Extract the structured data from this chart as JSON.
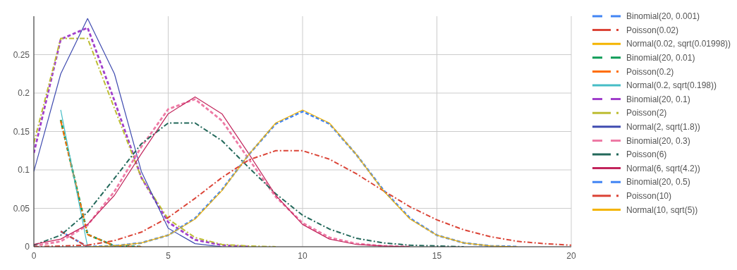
{
  "chart_data": {
    "type": "line",
    "x": [
      0,
      1,
      2,
      3,
      4,
      5,
      6,
      7,
      8,
      9,
      10,
      11,
      12,
      13,
      14,
      15,
      16,
      17,
      18,
      19,
      20
    ],
    "xlim": [
      0,
      20
    ],
    "xticks": [
      0,
      5,
      10,
      15,
      20
    ],
    "ylim": [
      0,
      0.3
    ],
    "yticks": [
      0,
      0.05,
      0.1,
      0.15,
      0.2,
      0.25
    ],
    "grid": true,
    "legend": "right",
    "series": [
      {
        "name": "Binomial(20, 0.001)",
        "color": "#4285f4",
        "line_style": "dashed",
        "values": [
          null,
          0.02,
          0,
          null,
          null,
          null,
          null,
          null,
          null,
          null,
          null,
          null,
          null,
          null,
          null,
          null,
          null,
          null,
          null,
          null,
          null
        ]
      },
      {
        "name": "Poisson(0.02)",
        "color": "#db4437",
        "line_style": "dashdot",
        "values": [
          null,
          0.02,
          0,
          null,
          null,
          null,
          null,
          null,
          null,
          null,
          null,
          null,
          null,
          null,
          null,
          null,
          null,
          null,
          null,
          null,
          null
        ]
      },
      {
        "name": "Normal(0.02, sqrt(0.01998))",
        "color": "#f4b400",
        "line_style": "solid",
        "values": [
          null,
          null,
          null,
          null,
          null,
          null,
          null,
          null,
          null,
          null,
          null,
          null,
          null,
          null,
          null,
          null,
          null,
          null,
          null,
          null,
          null
        ]
      },
      {
        "name": "Binomial(20, 0.01)",
        "color": "#0f9d58",
        "line_style": "dashed",
        "values": [
          null,
          0.165,
          0.016,
          0.001,
          0,
          null,
          null,
          null,
          null,
          null,
          null,
          null,
          null,
          null,
          null,
          null,
          null,
          null,
          null,
          null,
          null
        ]
      },
      {
        "name": "Poisson(0.2)",
        "color": "#ff6d00",
        "line_style": "dashdot",
        "values": [
          null,
          0.164,
          0.016,
          0.001,
          0,
          null,
          null,
          null,
          null,
          null,
          null,
          null,
          null,
          null,
          null,
          null,
          null,
          null,
          null,
          null,
          null
        ]
      },
      {
        "name": "Normal(0.2, sqrt(0.198))",
        "color": "#46bdc6",
        "line_style": "solid",
        "values": [
          null,
          0.178,
          0,
          null,
          null,
          null,
          null,
          null,
          null,
          null,
          null,
          null,
          null,
          null,
          null,
          null,
          null,
          null,
          null,
          null,
          null
        ]
      },
      {
        "name": "Binomial(20, 0.1)",
        "color": "#a03fcb",
        "line_style": "dashed",
        "values": [
          0.122,
          0.27,
          0.285,
          0.19,
          0.09,
          0.032,
          0.009,
          0.002,
          0,
          null,
          null,
          null,
          null,
          null,
          null,
          null,
          null,
          null,
          null,
          null,
          null
        ]
      },
      {
        "name": "Poisson(2)",
        "color": "#bdbd33",
        "line_style": "dashdot",
        "values": [
          0.135,
          0.271,
          0.271,
          0.18,
          0.09,
          0.036,
          0.012,
          0.003,
          0.001,
          0,
          null,
          null,
          null,
          null,
          null,
          null,
          null,
          null,
          null,
          null,
          null
        ]
      },
      {
        "name": "Normal(2, sqrt(1.8))",
        "color": "#3f4bb0",
        "line_style": "solid",
        "values": [
          0.098,
          0.225,
          0.297,
          0.225,
          0.098,
          0.024,
          0.004,
          0,
          null,
          null,
          null,
          null,
          null,
          null,
          null,
          null,
          null,
          null,
          null,
          null,
          null
        ]
      },
      {
        "name": "Binomial(20, 0.3)",
        "color": "#ee7aa5",
        "line_style": "dashed",
        "values": [
          0.001,
          0.007,
          0.028,
          0.072,
          0.13,
          0.179,
          0.192,
          0.164,
          0.114,
          0.065,
          0.031,
          0.012,
          0.004,
          0.001,
          0,
          null,
          null,
          null,
          null,
          null,
          null
        ]
      },
      {
        "name": "Poisson(6)",
        "color": "#22685a",
        "line_style": "dashdot",
        "values": [
          0.002,
          0.015,
          0.045,
          0.089,
          0.134,
          0.161,
          0.161,
          0.138,
          0.103,
          0.069,
          0.041,
          0.023,
          0.011,
          0.005,
          0.002,
          0.001,
          0,
          null,
          null,
          null,
          null
        ]
      },
      {
        "name": "Normal(6, sqrt(4.2))",
        "color": "#c2255c",
        "line_style": "solid",
        "values": [
          0.003,
          0.01,
          0.029,
          0.067,
          0.121,
          0.173,
          0.195,
          0.173,
          0.121,
          0.067,
          0.029,
          0.01,
          0.003,
          0.001,
          0,
          null,
          null,
          null,
          null,
          null,
          null
        ]
      },
      {
        "name": "Binomial(20, 0.5)",
        "color": "#4285f4",
        "line_style": "dashed",
        "values": [
          null,
          null,
          0,
          0.001,
          0.005,
          0.015,
          0.037,
          0.074,
          0.12,
          0.16,
          0.176,
          0.16,
          0.12,
          0.074,
          0.037,
          0.015,
          0.005,
          0.001,
          0,
          null,
          null
        ]
      },
      {
        "name": "Poisson(10)",
        "color": "#db4437",
        "line_style": "dashdot",
        "values": [
          0,
          0.001,
          0.002,
          0.008,
          0.019,
          0.038,
          0.063,
          0.09,
          0.113,
          0.125,
          0.125,
          0.114,
          0.095,
          0.073,
          0.052,
          0.035,
          0.022,
          0.013,
          0.007,
          0.004,
          0.002
        ]
      },
      {
        "name": "Normal(10, sqrt(5))",
        "color": "#f4b400",
        "line_style": "solid",
        "values": [
          null,
          null,
          0,
          0.001,
          0.005,
          0.015,
          0.036,
          0.073,
          0.12,
          0.161,
          0.178,
          0.161,
          0.12,
          0.073,
          0.036,
          0.015,
          0.005,
          0.001,
          0,
          null,
          null
        ]
      }
    ]
  }
}
